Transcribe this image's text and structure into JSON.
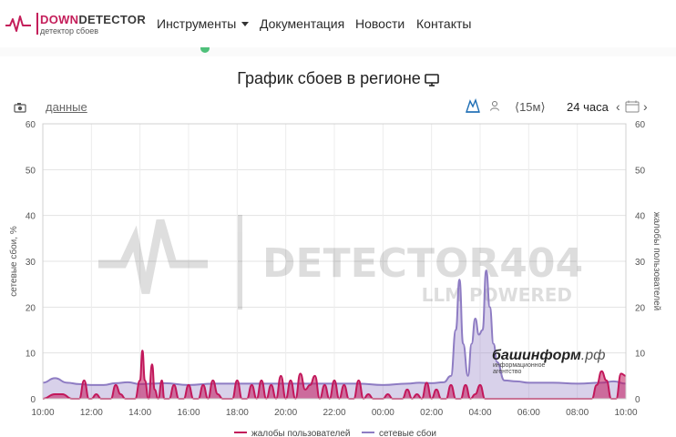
{
  "nav": {
    "logo_part1": "DOWN",
    "logo_part2": "DETECTOR",
    "logo_sub": "детектор сбоев",
    "items": [
      {
        "label": "Инструменты"
      },
      {
        "label": "Документация"
      },
      {
        "label": "Новости"
      },
      {
        "label": "Контакты"
      }
    ]
  },
  "chart_title": "График сбоев в регионе",
  "toolbar": {
    "data_link": "данные",
    "interval": "⟨15м⟩",
    "range": "24 часа"
  },
  "watermarks": {
    "main": "DETECTOR404",
    "sub": "LLM POWERED",
    "brand_main": "башинформ",
    "brand_suffix": ".рф",
    "brand_sub1": "информационное",
    "brand_sub2": "агентство"
  },
  "chart_data": {
    "type": "area",
    "y_label_left": "сетевые сбои, %",
    "y_label_right": "жалобы пользователей",
    "y_ticks": [
      0,
      10,
      20,
      30,
      40,
      50,
      60
    ],
    "ylim": [
      0,
      60
    ],
    "x_ticks": [
      "10:00",
      "12:00",
      "14:00",
      "16:00",
      "18:00",
      "20:00",
      "22:00",
      "00:00",
      "02:00",
      "04:00",
      "06:00",
      "08:00",
      "10:00"
    ],
    "x_tick_hours": [
      0,
      2,
      4,
      6,
      8,
      10,
      12,
      14,
      16,
      18,
      20,
      22,
      24
    ],
    "x_range_hours": [
      0,
      24
    ],
    "grid": true,
    "legend_position": "bottom",
    "series": [
      {
        "name": "жалобы пользователей",
        "color": "#c2185b",
        "x": [
          0,
          0.5,
          0.8,
          1.2,
          1.5,
          1.7,
          1.9,
          2.0,
          2.2,
          2.4,
          2.6,
          2.8,
          3.0,
          3.2,
          3.4,
          3.6,
          3.8,
          4.0,
          4.1,
          4.2,
          4.35,
          4.5,
          4.6,
          4.75,
          4.9,
          5.0,
          5.2,
          5.4,
          5.6,
          5.8,
          6.0,
          6.2,
          6.4,
          6.6,
          6.8,
          7.0,
          7.2,
          7.4,
          7.6,
          7.8,
          8.0,
          8.2,
          8.4,
          8.6,
          8.8,
          9.0,
          9.2,
          9.4,
          9.6,
          9.8,
          10.0,
          10.2,
          10.4,
          10.6,
          10.8,
          11.0,
          11.2,
          11.4,
          11.6,
          11.8,
          12.0,
          12.2,
          12.4,
          12.6,
          12.8,
          13.0,
          13.2,
          13.4,
          13.6,
          13.8,
          14.0,
          14.2,
          14.4,
          14.6,
          14.8,
          15.0,
          15.2,
          15.4,
          15.6,
          15.8,
          16.0,
          16.2,
          16.4,
          16.6,
          16.8,
          17.0,
          17.2,
          17.4,
          17.6,
          17.8,
          18.0,
          18.2,
          18.4,
          18.6,
          18.8,
          19.0,
          19.2,
          19.4,
          19.6,
          19.8,
          20.0,
          20.2,
          20.4,
          20.6,
          20.8,
          21.0,
          21.2,
          21.4,
          21.6,
          21.8,
          22.0,
          22.2,
          22.4,
          22.6,
          22.8,
          23.0,
          23.2,
          23.4,
          23.6,
          23.8,
          24.0
        ],
        "values": [
          0,
          1,
          1,
          0,
          0,
          4,
          0,
          0,
          1,
          0,
          0,
          0,
          3,
          1,
          0,
          0,
          0,
          4,
          10.5,
          4,
          0,
          7.5,
          2,
          0,
          4,
          0,
          0,
          3,
          0,
          0,
          3,
          0,
          0,
          3,
          0,
          4,
          1,
          0,
          0,
          0,
          4,
          0,
          0,
          3,
          0,
          4,
          0,
          3,
          0,
          5,
          0,
          4,
          0,
          5.5,
          2,
          3,
          5,
          0,
          3,
          0,
          4,
          0,
          3,
          0,
          0,
          4,
          0,
          1,
          0,
          0,
          0,
          1,
          0,
          0,
          0,
          2,
          0,
          1,
          0,
          3.5,
          0,
          2,
          0,
          0,
          3,
          0,
          0,
          3,
          0,
          1,
          3,
          0,
          0,
          0,
          0,
          0,
          0,
          0,
          0,
          0,
          0,
          0,
          0,
          0,
          0,
          0,
          0,
          0,
          0,
          0,
          0,
          0,
          0,
          0,
          3,
          6,
          4,
          0,
          0,
          5.5,
          5
        ]
      },
      {
        "name": "сетевые сбои",
        "color": "#8e7cc3",
        "x": [
          0,
          0.5,
          1.0,
          1.5,
          2.0,
          2.5,
          3.0,
          3.5,
          4.0,
          4.5,
          5.0,
          6.0,
          7.0,
          8.0,
          9.0,
          10.0,
          11.0,
          12.0,
          13.0,
          14.0,
          15.0,
          15.5,
          16.0,
          16.5,
          16.8,
          17.0,
          17.15,
          17.3,
          17.5,
          17.65,
          17.8,
          17.95,
          18.1,
          18.25,
          18.4,
          18.55,
          18.7,
          19.0,
          19.5,
          20.0,
          21.0,
          22.0,
          23.0,
          23.5,
          24.0
        ],
        "values": [
          3.5,
          4.5,
          3.5,
          3.2,
          3.0,
          3.0,
          3.4,
          3.6,
          3.2,
          3.3,
          3.4,
          3.0,
          3.3,
          3.3,
          3.3,
          3.3,
          3.3,
          3.3,
          3.3,
          3.0,
          3.3,
          3.5,
          3.4,
          3.6,
          5.0,
          15.0,
          26.0,
          12.0,
          5.0,
          12.0,
          17.5,
          14.0,
          15.0,
          28.0,
          20.0,
          12.0,
          8.0,
          4.0,
          3.8,
          3.5,
          3.5,
          3.3,
          3.5,
          3.8,
          3.3
        ]
      }
    ]
  }
}
